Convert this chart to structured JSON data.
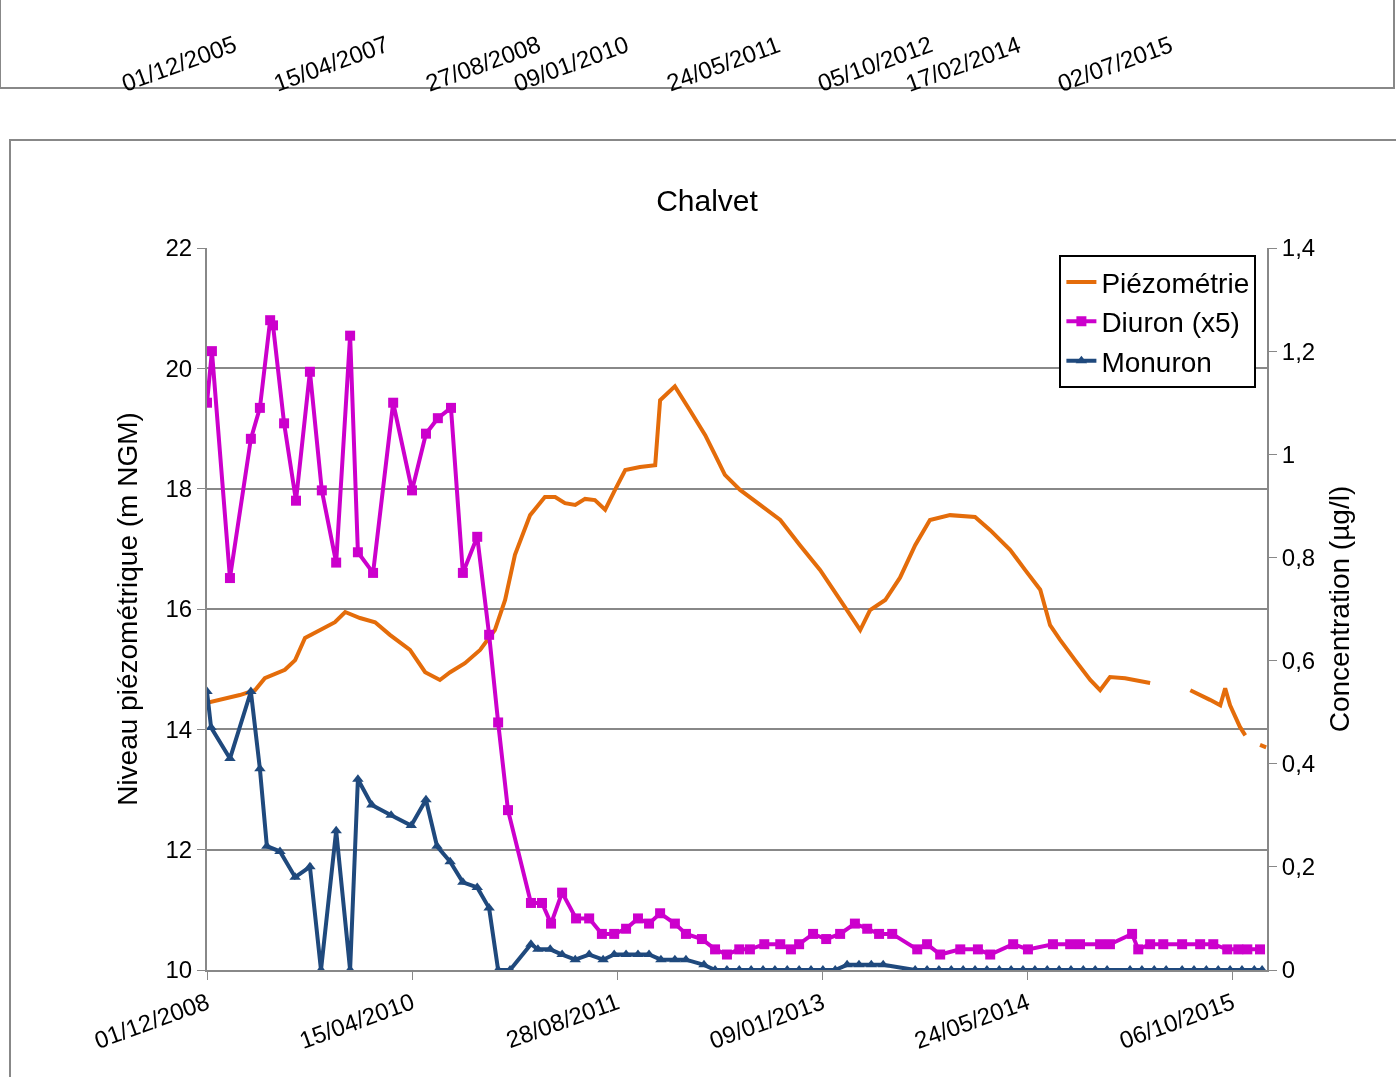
{
  "chart_data": [
    {
      "type": "other",
      "annotations": [
        "01/12/2005",
        "15/04/2007",
        "27/08/2008",
        "09/01/2010",
        "24/05/2011",
        "05/10/2012",
        "17/02/2014",
        "02/07/2015"
      ]
    },
    {
      "type": "line",
      "title": "Chalvet",
      "ylabel": "Niveau piézométrique (m NGM)",
      "y2label": "Concentration (µg/l)",
      "xlim": [
        "2008-12-01",
        "2015-12-30"
      ],
      "xticks": [
        {
          "value": "2008-12-01",
          "label": "01/12/2008"
        },
        {
          "value": "2010-04-15",
          "label": "15/04/2010"
        },
        {
          "value": "2011-08-28",
          "label": "28/08/2011"
        },
        {
          "value": "2013-01-09",
          "label": "09/01/2013"
        },
        {
          "value": "2014-05-24",
          "label": "24/05/2014"
        },
        {
          "value": "2015-10-06",
          "label": "06/10/2015"
        }
      ],
      "ylim": [
        10,
        22
      ],
      "yticks": [
        10,
        12,
        14,
        16,
        18,
        20,
        22
      ],
      "y2lim": [
        0,
        1.4
      ],
      "y2ticks": [
        0,
        {
          "value": 0.2,
          "label": "0,2"
        },
        {
          "value": 0.4,
          "label": "0,4"
        },
        {
          "value": 0.6,
          "label": "0,6"
        },
        {
          "value": 0.8,
          "label": "0,8"
        },
        1,
        {
          "value": 1.2,
          "label": "1,2"
        },
        {
          "value": 1.4,
          "label": "1,4"
        }
      ],
      "grid": "y",
      "legend": "top right",
      "line_style": "solid",
      "series": [
        {
          "name": "Piézométrie",
          "color": "#e46c0a",
          "marker": "none",
          "x": [
            "2008-12-01",
            "2009-02-19",
            "2009-03-28",
            "2009-04-21",
            "2009-06-09",
            "2009-07-04",
            "2009-07-28",
            "2009-09-03",
            "2009-10-09",
            "2009-11-03",
            "2009-12-09",
            "2010-01-15",
            "2010-02-20",
            "2010-04-10",
            "2010-05-17",
            "2010-06-22",
            "2010-07-17",
            "2010-08-22",
            "2010-09-28",
            "2010-11-03",
            "2010-11-28",
            "2010-12-22",
            "2011-01-28",
            "2011-03-05",
            "2011-03-30",
            "2011-04-23",
            "2011-05-18",
            "2011-06-11",
            "2011-07-05",
            "2011-07-30",
            "2011-08-23",
            "2011-09-17",
            "2011-10-23",
            "2011-11-29",
            "2011-12-11",
            "2012-01-16",
            "2012-02-22",
            "2012-03-30",
            "2012-04-23",
            "2012-05-17",
            "2012-06-23",
            "2012-08-11",
            "2012-09-29",
            "2012-11-16",
            "2013-01-04",
            "2013-02-22",
            "2013-04-12",
            "2013-05-06",
            "2013-06-12",
            "2013-07-18",
            "2013-08-24",
            "2013-09-29",
            "2013-11-17",
            "2014-01-17",
            "2014-02-23",
            "2014-04-13",
            "2014-05-19",
            "2014-06-25",
            "2014-07-19",
            "2014-08-12",
            "2014-09-18",
            "2014-10-25",
            "2014-11-18",
            "2014-12-12",
            "2015-01-18",
            "2015-03-20",
            "2015-05-01",
            "2015-06-26",
            "2015-08-13",
            "2015-09-07",
            "2015-09-19",
            "2015-10-01",
            "2015-10-25",
            "2015-11-07",
            "2015-11-25",
            "2015-12-13",
            "2015-12-28"
          ],
          "values": [
            14.44,
            14.57,
            14.65,
            14.85,
            14.99,
            15.15,
            15.52,
            15.65,
            15.78,
            15.95,
            15.85,
            15.78,
            15.57,
            15.32,
            14.95,
            14.82,
            14.95,
            15.1,
            15.32,
            15.65,
            16.15,
            16.9,
            17.56,
            17.86,
            17.86,
            17.76,
            17.73,
            17.83,
            17.81,
            17.65,
            17.98,
            18.31,
            18.36,
            18.39,
            19.47,
            19.7,
            19.3,
            18.89,
            18.56,
            18.23,
            17.98,
            17.73,
            17.48,
            17.06,
            16.65,
            16.15,
            15.65,
            15.98,
            16.15,
            16.52,
            17.06,
            17.48,
            17.56,
            17.53,
            17.31,
            16.98,
            16.65,
            16.32,
            15.73,
            15.49,
            15.15,
            14.82,
            14.65,
            14.87,
            14.85,
            14.77,
            null,
            14.65,
            14.49,
            14.4,
            14.68,
            14.4,
            14.04,
            13.9,
            null,
            13.74,
            13.7
          ]
        },
        {
          "name": "Diuron (x5)",
          "color": "#cc00cc",
          "marker": "square",
          "axis": "y2",
          "x": [
            "2008-12-01",
            "2008-12-13",
            "2009-01-26",
            "2009-03-18",
            "2009-04-09",
            "2009-05-04",
            "2009-05-11",
            "2009-06-07",
            "2009-07-06",
            "2009-08-09",
            "2009-09-07",
            "2009-10-12",
            "2009-11-15",
            "2009-12-04",
            "2010-01-10",
            "2010-02-28",
            "2010-04-15",
            "2010-05-19",
            "2010-06-17",
            "2010-07-19",
            "2010-08-17",
            "2010-09-21",
            "2010-10-20",
            "2010-11-11",
            "2010-12-05",
            "2011-01-30",
            "2011-02-26",
            "2011-03-20",
            "2011-04-16",
            "2011-05-20",
            "2011-06-21",
            "2011-07-22",
            "2011-08-21",
            "2011-09-19",
            "2011-10-18",
            "2011-11-14",
            "2011-12-11",
            "2012-01-16",
            "2012-02-12",
            "2012-03-22",
            "2012-04-23",
            "2012-05-22",
            "2012-06-21",
            "2012-07-17",
            "2012-08-21",
            "2012-09-29",
            "2012-10-25",
            "2012-11-14",
            "2012-12-18",
            "2013-01-19",
            "2013-02-22",
            "2013-03-30",
            "2013-04-29",
            "2013-05-28",
            "2013-06-29",
            "2013-08-29",
            "2013-09-22",
            "2013-10-24",
            "2013-12-12",
            "2014-01-24",
            "2014-02-23",
            "2014-04-20",
            "2014-05-26",
            "2014-07-26",
            "2014-09-06",
            "2014-09-30",
            "2014-11-18",
            "2014-12-12",
            "2015-02-04",
            "2015-02-19",
            "2015-03-20",
            "2015-04-21",
            "2015-06-06",
            "2015-07-20",
            "2015-08-21",
            "2015-09-24",
            "2015-10-21",
            "2015-11-12",
            "2015-12-13"
          ],
          "values": [
            1.1,
            1.2,
            0.76,
            1.03,
            1.09,
            1.26,
            1.25,
            1.06,
            0.91,
            1.16,
            0.93,
            0.79,
            1.23,
            0.81,
            0.77,
            1.1,
            0.93,
            1.04,
            1.07,
            1.09,
            0.77,
            0.84,
            0.65,
            0.48,
            0.31,
            0.13,
            0.13,
            0.09,
            0.15,
            0.1,
            0.1,
            0.07,
            0.07,
            0.08,
            0.1,
            0.09,
            0.11,
            0.09,
            0.07,
            0.06,
            0.04,
            0.03,
            0.04,
            0.04,
            0.05,
            0.05,
            0.04,
            0.05,
            0.07,
            0.06,
            0.07,
            0.09,
            0.08,
            0.07,
            0.07,
            0.04,
            0.05,
            0.03,
            0.04,
            0.04,
            0.03,
            0.05,
            0.04,
            0.05,
            0.05,
            0.05,
            0.05,
            0.05,
            0.07,
            0.04,
            0.05,
            0.05,
            0.05,
            0.05,
            0.05,
            0.04,
            0.04,
            0.04,
            0.04
          ]
        },
        {
          "name": "Monuron",
          "color": "#1f497d",
          "marker": "triangle",
          "axis": "y2",
          "x": [
            "2008-12-01",
            "2008-12-11",
            "2009-01-26",
            "2009-03-18",
            "2009-04-09",
            "2009-04-26",
            "2009-05-28",
            "2009-07-04",
            "2009-08-09",
            "2009-09-05",
            "2009-10-12",
            "2009-11-15",
            "2009-12-04",
            "2010-01-07",
            "2010-02-23",
            "2010-04-13",
            "2010-05-19",
            "2010-06-15",
            "2010-07-17",
            "2010-08-17",
            "2010-09-21",
            "2010-10-20",
            "2010-11-11",
            "2010-12-10",
            "2011-01-30",
            "2011-02-16",
            "2011-03-18",
            "2011-04-16",
            "2011-05-18",
            "2011-06-21",
            "2011-07-25",
            "2011-08-21",
            "2011-09-19",
            "2011-10-18",
            "2011-11-14",
            "2011-12-13",
            "2012-01-16",
            "2012-02-12",
            "2012-03-27",
            "2012-04-23",
            "2012-05-22",
            "2012-06-21",
            "2012-07-20",
            "2012-08-18",
            "2012-09-16",
            "2012-10-16",
            "2012-11-14",
            "2012-12-13",
            "2013-01-11",
            "2013-02-10",
            "2013-03-11",
            "2013-04-09",
            "2013-05-09",
            "2013-06-07",
            "2013-08-24",
            "2013-09-22",
            "2013-10-21",
            "2013-11-20",
            "2013-12-19",
            "2014-01-17",
            "2014-02-15",
            "2014-03-17",
            "2014-04-15",
            "2014-05-14",
            "2014-06-12",
            "2014-07-12",
            "2014-08-10",
            "2014-09-08",
            "2014-10-08",
            "2014-11-06",
            "2014-12-05",
            "2015-01-30",
            "2015-02-28",
            "2015-03-30",
            "2015-04-28",
            "2015-06-06",
            "2015-07-05",
            "2015-08-04",
            "2015-09-02",
            "2015-10-01",
            "2015-10-30",
            "2015-11-29",
            "2015-12-18"
          ],
          "values": [
            0.54,
            0.47,
            0.41,
            0.54,
            0.39,
            0.24,
            0.23,
            0.18,
            0.2,
            0,
            0.27,
            0,
            0.37,
            0.32,
            0.3,
            0.28,
            0.33,
            0.24,
            0.21,
            0.17,
            0.16,
            0.12,
            0,
            0,
            0.05,
            0.04,
            0.04,
            0.03,
            0.02,
            0.03,
            0.02,
            0.03,
            0.03,
            0.03,
            0.03,
            0.02,
            0.02,
            0.02,
            0.01,
            0,
            0,
            0,
            0,
            0,
            0,
            0,
            0,
            0,
            0,
            0,
            0.01,
            0.01,
            0.01,
            0.01,
            0,
            0,
            0,
            0,
            0,
            0,
            0,
            0,
            0,
            0,
            0,
            0,
            0,
            0,
            0,
            0,
            0,
            0,
            0,
            0,
            0,
            0,
            0,
            0,
            0,
            0,
            0,
            0,
            0
          ]
        }
      ]
    }
  ]
}
